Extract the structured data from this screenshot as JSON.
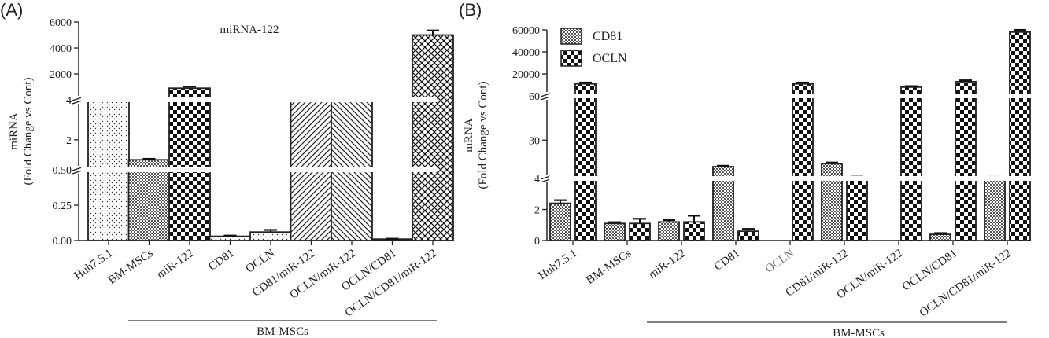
{
  "figure": {
    "panel_a_label": "(A)",
    "panel_b_label": "(B)",
    "group_label_a": "BM-MSCs",
    "group_label_b": "BM-MSCs"
  },
  "chart_data": [
    {
      "id": "A",
      "type": "bar",
      "title": "miRNA-122",
      "ylabel_line1": "miRNA",
      "ylabel_line2": "(Fold Change vs Cont)",
      "xlabel": "",
      "categories": [
        "Huh7.5.1",
        "BM-MSCs",
        "miR-122",
        "CD81",
        "OCLN",
        "CD81/miR-122",
        "OCLN/miR-122",
        "OCLN/CD81",
        "OCLN/CD81/miR-122"
      ],
      "series": [
        {
          "values": [
            10,
            1.0,
            900,
            0.03,
            0.06,
            5,
            5,
            0.01,
            5000
          ],
          "errors": [
            2,
            0.05,
            120,
            0.005,
            0.015,
            1,
            1,
            0.003,
            350
          ],
          "patterns": [
            "dots",
            "crosshatch",
            "checker",
            "dots",
            "dots",
            "diag",
            "backdiag",
            "dots",
            "weave"
          ]
        }
      ],
      "y_axis_segments": [
        {
          "range": [
            0,
            0.5
          ],
          "ticks": [
            "0.00",
            "0.25",
            "0.50"
          ]
        },
        {
          "range": [
            0.5,
            4
          ],
          "ticks": [
            "2",
            "4"
          ]
        },
        {
          "range": [
            4,
            6000
          ],
          "ticks": [
            "2000",
            "4000",
            "6000"
          ]
        }
      ],
      "grid": false,
      "legend": "none"
    },
    {
      "id": "B",
      "type": "bar",
      "title": "",
      "ylabel_line1": "mRNA",
      "ylabel_line2": "(Fold Change vs Cont)",
      "xlabel": "",
      "categories": [
        "Huh7.5.1",
        "BM-MSCs",
        "miR-122",
        "CD81",
        "OCLN",
        "CD81/miR-122",
        "OCLN/miR-122",
        "OCLN/CD81",
        "OCLN/CD81/miR-122"
      ],
      "series": [
        {
          "name": "CD81",
          "pattern": "crosshatch",
          "values": [
            2.4,
            1.1,
            1.2,
            12,
            null,
            14,
            null,
            0.4,
            4.8
          ],
          "errors": [
            0.2,
            0.08,
            0.12,
            0.6,
            null,
            0.8,
            null,
            0.08,
            0.25
          ]
        },
        {
          "name": "OCLN",
          "pattern": "checker",
          "values": [
            11000,
            1.1,
            1.2,
            0.6,
            11000,
            5,
            8000,
            13000,
            58000
          ],
          "errors": [
            1200,
            0.3,
            0.4,
            0.15,
            1200,
            0.2,
            900,
            1200,
            4000
          ]
        }
      ],
      "y_axis_segments": [
        {
          "range": [
            0,
            4
          ],
          "ticks": [
            "0",
            "2",
            "4"
          ]
        },
        {
          "range": [
            4,
            60
          ],
          "ticks": [
            "30",
            "60"
          ]
        },
        {
          "range": [
            60,
            60000
          ],
          "ticks": [
            "20000",
            "40000",
            "60000"
          ]
        }
      ],
      "grid": false,
      "legend": "top-left"
    }
  ]
}
